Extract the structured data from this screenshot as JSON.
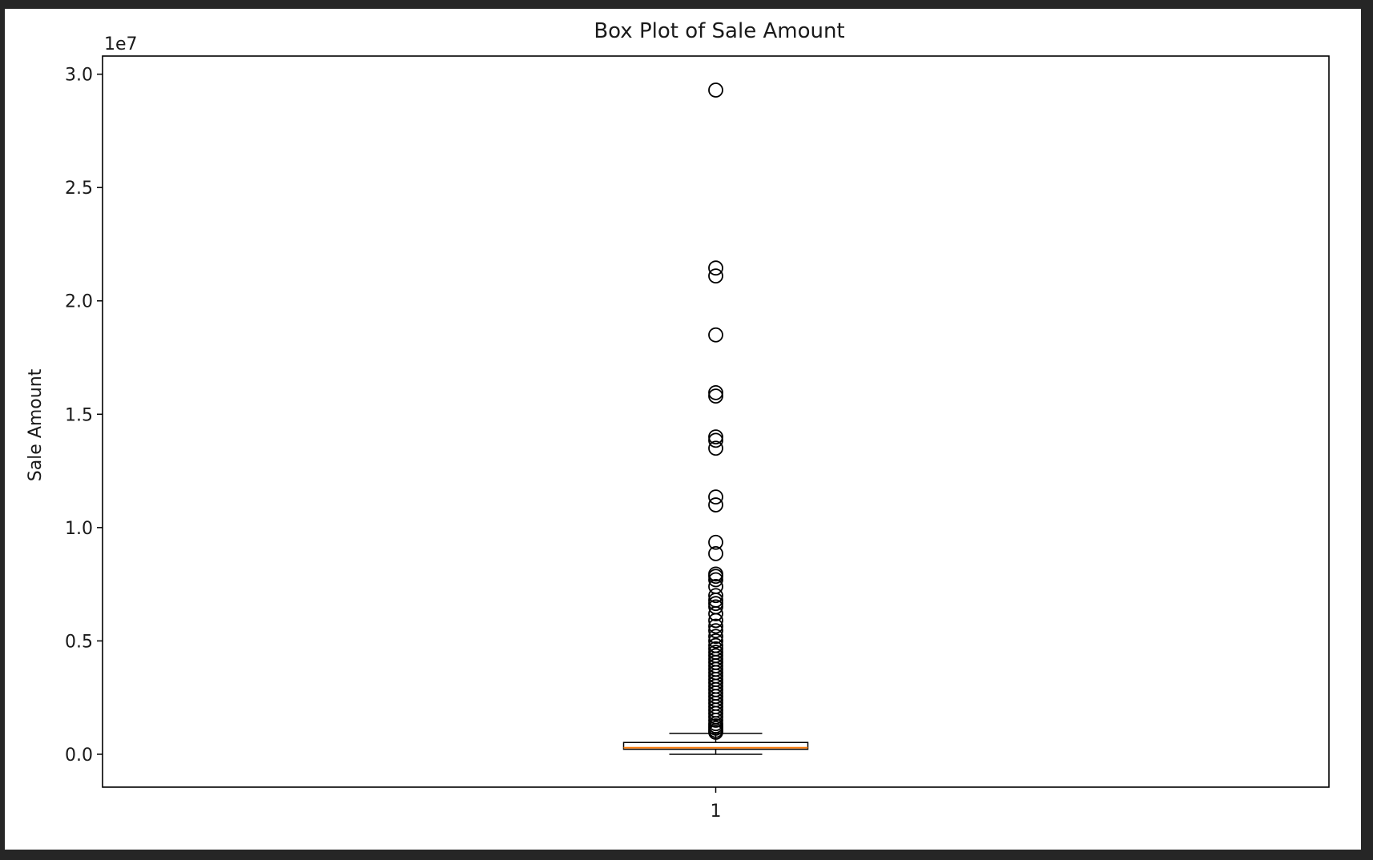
{
  "chart_data": {
    "type": "box",
    "title": "Box Plot of Sale Amount",
    "xlabel": "",
    "ylabel": "Sale Amount",
    "y_offset_label": "1e7",
    "y_scale_factor": 10000000,
    "categories": [
      "1"
    ],
    "ylim": [
      -1450000,
      30800000
    ],
    "yticks": [
      0,
      5000000,
      10000000,
      15000000,
      20000000,
      25000000,
      30000000
    ],
    "ytick_labels": [
      "0.0",
      "0.5",
      "1.0",
      "1.5",
      "2.0",
      "2.5",
      "3.0"
    ],
    "grid": false,
    "legend": "none",
    "boxes": [
      {
        "category": "1",
        "whisker_low": 0,
        "q1": 220000,
        "median": 290000,
        "q3": 520000,
        "whisker_high": 920000,
        "outliers": [
          29300000,
          21450000,
          21100000,
          18500000,
          15950000,
          15800000,
          14000000,
          13850000,
          13500000,
          11350000,
          11000000,
          9350000,
          8850000,
          7950000,
          7850000,
          7700000,
          7400000,
          7000000,
          6800000,
          6650000,
          6500000,
          6200000,
          5900000,
          5650000,
          5450000,
          5200000,
          5000000,
          4800000,
          4650000,
          4500000,
          4350000,
          4200000,
          4050000,
          3900000,
          3750000,
          3600000,
          3450000,
          3300000,
          3150000,
          3000000,
          2850000,
          2700000,
          2550000,
          2400000,
          2250000,
          2100000,
          1950000,
          1800000,
          1650000,
          1500000,
          1350000,
          1250000,
          1150000,
          1050000,
          970000
        ]
      }
    ],
    "colors": {
      "box": "#000000",
      "median": "#ff7f0e",
      "outlier_edge": "#000000",
      "frame": "#000000"
    }
  }
}
